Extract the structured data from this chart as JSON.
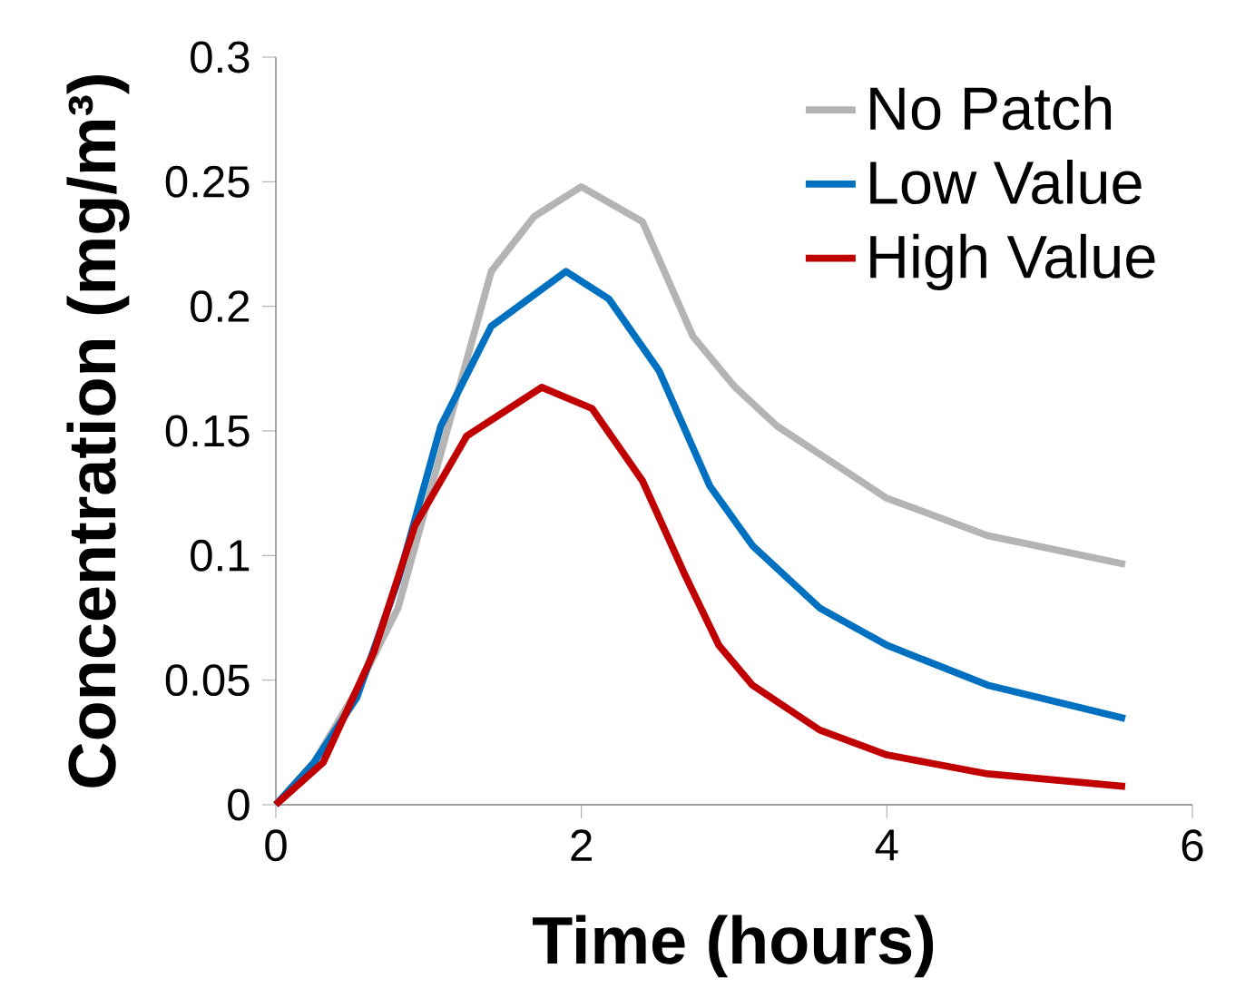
{
  "chart_data": {
    "type": "line",
    "xlabel": "Time (hours)",
    "ylabel": "Concentration (mg/m³)",
    "xlim": [
      0,
      6
    ],
    "xticks": [
      0,
      2,
      4,
      6
    ],
    "ylim": [
      0,
      0.3
    ],
    "yticks": [
      0,
      0.05,
      0.1,
      0.15,
      0.2,
      0.25,
      0.3
    ],
    "legend": "top right",
    "series": [
      {
        "name": "No Patch",
        "color": "#b4b4b4",
        "x": [
          0,
          0.25,
          0.53,
          0.8,
          1.08,
          1.41,
          1.69,
          2.0,
          2.4,
          2.73,
          3.0,
          3.28,
          4.0,
          4.66,
          5.56
        ],
        "values": [
          0,
          0.017,
          0.046,
          0.079,
          0.141,
          0.214,
          0.236,
          0.248,
          0.234,
          0.188,
          0.168,
          0.152,
          0.123,
          0.108,
          0.0965
        ]
      },
      {
        "name": "Low Value",
        "color": "#0070c0",
        "x": [
          0,
          0.25,
          0.53,
          0.8,
          1.08,
          1.41,
          1.9,
          2.18,
          2.51,
          2.84,
          3.12,
          3.56,
          4.0,
          4.66,
          5.56
        ],
        "values": [
          0,
          0.017,
          0.043,
          0.09,
          0.152,
          0.192,
          0.214,
          0.203,
          0.174,
          0.128,
          0.104,
          0.079,
          0.064,
          0.048,
          0.0346
        ]
      },
      {
        "name": "High Value",
        "color": "#c00000",
        "x": [
          0,
          0.31,
          0.64,
          0.91,
          1.25,
          1.74,
          2.07,
          2.4,
          2.68,
          2.9,
          3.12,
          3.56,
          4.0,
          4.66,
          5.56
        ],
        "values": [
          0,
          0.017,
          0.061,
          0.112,
          0.148,
          0.1675,
          0.159,
          0.13,
          0.092,
          0.064,
          0.048,
          0.03,
          0.02,
          0.0124,
          0.0073
        ]
      }
    ]
  }
}
